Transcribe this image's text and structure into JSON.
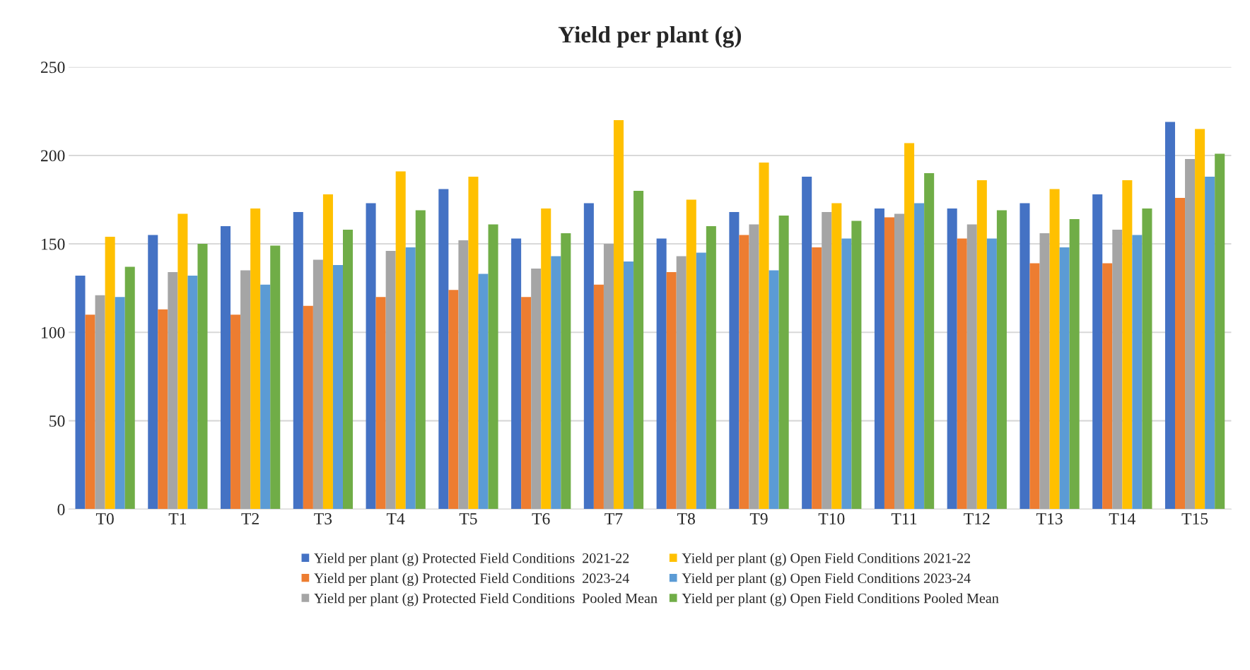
{
  "chart_data": {
    "type": "bar",
    "title": "Yield per plant (g)",
    "categories": [
      "T0",
      "T1",
      "T2",
      "T3",
      "T4",
      "T5",
      "T6",
      "T7",
      "T8",
      "T9",
      "T10",
      "T11",
      "T12",
      "T13",
      "T14",
      "T15"
    ],
    "series": [
      {
        "name": "Yield per plant (g) Protected Field Conditions  2021-22",
        "color": "#4472c4",
        "values": [
          132,
          155,
          160,
          168,
          173,
          181,
          153,
          173,
          153,
          168,
          188,
          170,
          170,
          173,
          178,
          219
        ]
      },
      {
        "name": "Yield per plant (g) Protected Field Conditions  2023-24",
        "color": "#ed7d31",
        "values": [
          110,
          113,
          110,
          115,
          120,
          124,
          120,
          127,
          134,
          155,
          148,
          165,
          153,
          139,
          139,
          176
        ]
      },
      {
        "name": "Yield per plant (g) Protected Field Conditions  Pooled Mean",
        "color": "#a5a5a5",
        "values": [
          121,
          134,
          135,
          141,
          146,
          152,
          136,
          150,
          143,
          161,
          168,
          167,
          161,
          156,
          158,
          198
        ]
      },
      {
        "name": "Yield per plant (g) Open Field Conditions 2021-22",
        "color": "#ffc000",
        "values": [
          154,
          167,
          170,
          178,
          191,
          188,
          170,
          220,
          175,
          196,
          173,
          207,
          186,
          181,
          186,
          215
        ]
      },
      {
        "name": "Yield per plant (g) Open Field Conditions 2023-24",
        "color": "#5b9bd5",
        "values": [
          120,
          132,
          127,
          138,
          148,
          133,
          143,
          140,
          145,
          135,
          153,
          173,
          153,
          148,
          155,
          188
        ]
      },
      {
        "name": "Yield per plant (g) Open Field Conditions Pooled Mean",
        "color": "#70ad47",
        "values": [
          137,
          150,
          149,
          158,
          169,
          161,
          156,
          180,
          160,
          166,
          163,
          190,
          169,
          164,
          170,
          201
        ]
      }
    ],
    "ylim": [
      0,
      250
    ],
    "yticks": [
      0,
      50,
      100,
      150,
      200,
      250
    ],
    "grid": "y",
    "legend": "bottom"
  }
}
